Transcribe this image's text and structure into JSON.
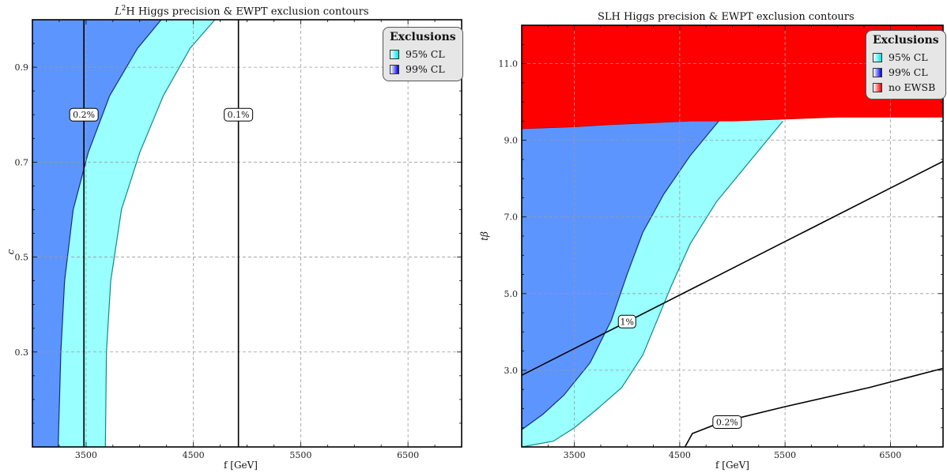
{
  "chart_data": [
    {
      "type": "contour",
      "title_prefix": "L",
      "title_sup": "2",
      "title_rest": "H Higgs precision & EWPT exclusion contours",
      "xlabel": "f [GeV]",
      "ylabel": "c",
      "xlim": [
        3000,
        7000
      ],
      "ylim": [
        0.1,
        1.0
      ],
      "xticks": [
        3500,
        4500,
        5500,
        6500
      ],
      "yticks": [
        0.3,
        0.5,
        0.7,
        0.9
      ],
      "grid": true,
      "legend": {
        "title": "Exclusions",
        "position": "top-right",
        "entries": [
          {
            "label": "95% CL",
            "color": "#99ffff"
          },
          {
            "label": "99% CL",
            "color": "#5d95ff"
          }
        ]
      },
      "regions": [
        {
          "name": "99% CL",
          "color": "#5d95ff",
          "boundary": [
            [
              3240,
              0.1
            ],
            [
              3265,
              0.3
            ],
            [
              3300,
              0.45
            ],
            [
              3380,
              0.6
            ],
            [
              3520,
              0.72
            ],
            [
              3720,
              0.84
            ],
            [
              3980,
              0.94
            ],
            [
              4200,
              1.0
            ]
          ]
        },
        {
          "name": "95% CL",
          "color": "#99ffff",
          "boundary": [
            [
              3680,
              0.1
            ],
            [
              3690,
              0.3
            ],
            [
              3730,
              0.45
            ],
            [
              3830,
              0.6
            ],
            [
              4000,
              0.72
            ],
            [
              4220,
              0.84
            ],
            [
              4470,
              0.94
            ],
            [
              4700,
              1.0
            ]
          ]
        }
      ],
      "contours": [
        {
          "label": "0.2%",
          "points": [
            [
              3480,
              0.1
            ],
            [
              3480,
              1.0
            ]
          ],
          "label_at": [
            3480,
            0.8
          ]
        },
        {
          "label": "0.1%",
          "points": [
            [
              4920,
              0.1
            ],
            [
              4920,
              1.0
            ]
          ],
          "label_at": [
            4920,
            0.8
          ]
        }
      ]
    },
    {
      "type": "contour",
      "title": "SLH Higgs precision & EWPT exclusion contours",
      "xlabel": "f [GeV]",
      "ylabel": "tβ",
      "xlim": [
        3000,
        7000
      ],
      "ylim": [
        1.0,
        12.0
      ],
      "xticks": [
        3500,
        4500,
        5500,
        6500
      ],
      "yticks": [
        3.0,
        5.0,
        7.0,
        9.0,
        11.0
      ],
      "grid": true,
      "legend": {
        "title": "Exclusions",
        "position": "top-right",
        "entries": [
          {
            "label": "95% CL",
            "color": "#99ffff"
          },
          {
            "label": "99% CL",
            "color": "#5d95ff"
          },
          {
            "label": "no EWSB",
            "color": "#ff0000"
          }
        ]
      },
      "regions": [
        {
          "name": "no EWSB",
          "color": "#ff0000",
          "boundary": [
            [
              3000,
              9.3
            ],
            [
              3500,
              9.35
            ],
            [
              3800,
              9.4
            ],
            [
              4200,
              9.45
            ],
            [
              4600,
              9.5
            ],
            [
              5000,
              9.5
            ],
            [
              5500,
              9.55
            ],
            [
              6000,
              9.6
            ],
            [
              7000,
              9.6
            ]
          ]
        },
        {
          "name": "99% CL",
          "color": "#5d95ff",
          "boundary": [
            [
              3000,
              1.45
            ],
            [
              3200,
              1.85
            ],
            [
              3400,
              2.35
            ],
            [
              3650,
              3.2
            ],
            [
              3850,
              4.3
            ],
            [
              4000,
              5.5
            ],
            [
              4150,
              6.6
            ],
            [
              4350,
              7.6
            ],
            [
              4600,
              8.6
            ],
            [
              4870,
              9.5
            ]
          ]
        },
        {
          "name": "95% CL",
          "color": "#99ffff",
          "boundary": [
            [
              3000,
              1.0
            ],
            [
              3300,
              1.15
            ],
            [
              3500,
              1.5
            ],
            [
              3700,
              1.95
            ],
            [
              3950,
              2.55
            ],
            [
              4150,
              3.4
            ],
            [
              4300,
              4.4
            ],
            [
              4420,
              5.2
            ],
            [
              4600,
              6.3
            ],
            [
              4850,
              7.4
            ],
            [
              5150,
              8.4
            ],
            [
              5480,
              9.5
            ]
          ]
        }
      ],
      "contours": [
        {
          "label": "1%",
          "points": [
            [
              3000,
              2.87
            ],
            [
              7000,
              8.45
            ]
          ],
          "label_at": [
            4000,
            4.27
          ]
        },
        {
          "label": "0.2%",
          "points": [
            [
              4550,
              1.0
            ],
            [
              4620,
              1.35
            ],
            [
              4900,
              1.65
            ],
            [
              5500,
              2.05
            ],
            [
              6300,
              2.55
            ],
            [
              7000,
              3.05
            ]
          ],
          "label_at": [
            4950,
            1.65
          ]
        }
      ]
    }
  ]
}
